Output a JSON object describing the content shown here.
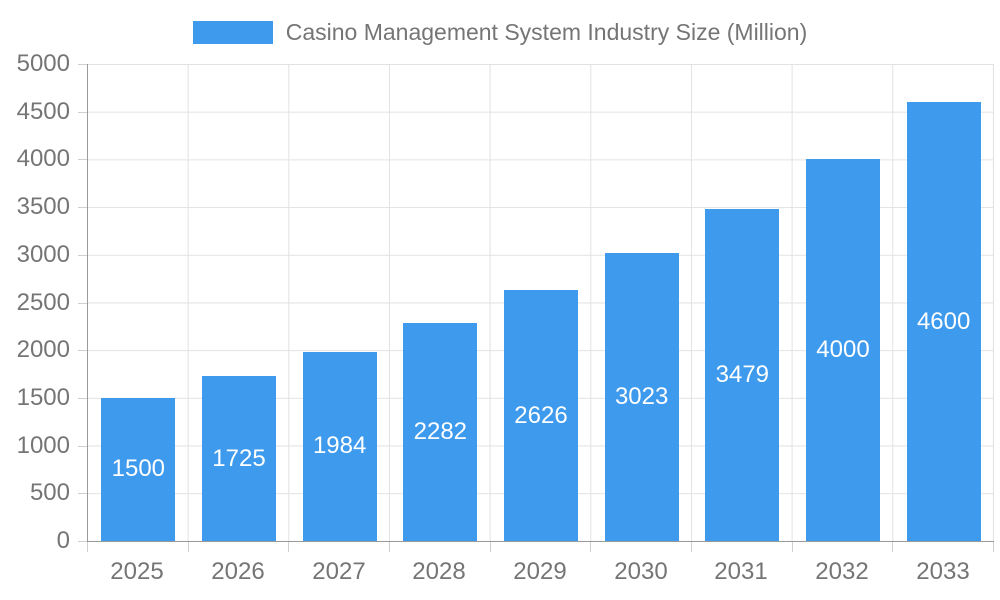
{
  "legend": {
    "label": "Casino Management System Industry Size (Million)"
  },
  "colors": {
    "bar": "#3d9aed",
    "axis_line": "#9a9a9a",
    "grid_line": "#e2e2e2",
    "tick": "#cfcfcf",
    "axis_text": "#757575",
    "value_label": "#ffffff",
    "background": "#ffffff"
  },
  "chart_data": {
    "type": "bar",
    "title": "Casino Management System Industry Size (Million)",
    "categories": [
      "2025",
      "2026",
      "2027",
      "2028",
      "2029",
      "2030",
      "2031",
      "2032",
      "2033"
    ],
    "values": [
      1500,
      1725,
      1984,
      2282,
      2626,
      3023,
      3479,
      4000,
      4600
    ],
    "series": [
      {
        "name": "Casino Management System Industry Size (Million)",
        "values": [
          1500,
          1725,
          1984,
          2282,
          2626,
          3023,
          3479,
          4000,
          4600
        ]
      }
    ],
    "xlabel": "",
    "ylabel": "",
    "ylim": [
      0,
      5000
    ],
    "yticks": [
      0,
      500,
      1000,
      1500,
      2000,
      2500,
      3000,
      3500,
      4000,
      4500,
      5000
    ],
    "grid": true,
    "legend_position": "top",
    "value_labels": "inside-center"
  }
}
